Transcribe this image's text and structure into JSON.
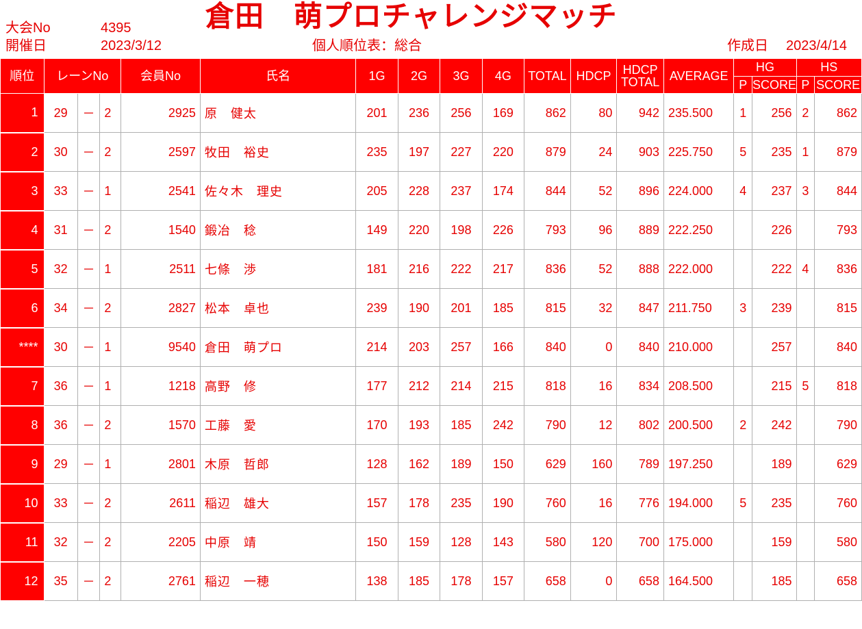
{
  "header": {
    "tournament_no_label": "大会No",
    "tournament_no": "4395",
    "date_label": "開催日",
    "date": "2023/3/12",
    "title": "倉田　萌プロチャレンジマッチ",
    "subtitle": "個人順位表：総合",
    "created_label": "作成日",
    "created_date": "2023/4/14"
  },
  "columns": {
    "rank": "順位",
    "lane": "レーンNo",
    "member": "会員No",
    "name": "氏名",
    "g1": "1G",
    "g2": "2G",
    "g3": "3G",
    "g4": "4G",
    "total": "TOTAL",
    "hdcp": "HDCP",
    "hdcp_total_1": "HDCP",
    "hdcp_total_2": "TOTAL",
    "average": "AVERAGE",
    "hg": "HG",
    "hs": "HS",
    "p": "P",
    "score": "SCORE"
  },
  "colors": {
    "accent": "#ff0000",
    "text": "#e60000"
  },
  "rows": [
    {
      "rank": "1",
      "lane_a": "29",
      "dash": "－",
      "lane_b": "2",
      "member": "2925",
      "name": "原　健太",
      "g1": "201",
      "g2": "236",
      "g3": "256",
      "g4": "169",
      "total": "862",
      "hdcp": "80",
      "hdcp_total": "942",
      "average": "235.500",
      "hg_p": "1",
      "hg_score": "256",
      "hs_p": "2",
      "hs_score": "862"
    },
    {
      "rank": "2",
      "lane_a": "30",
      "dash": "－",
      "lane_b": "2",
      "member": "2597",
      "name": "牧田　裕史",
      "g1": "235",
      "g2": "197",
      "g3": "227",
      "g4": "220",
      "total": "879",
      "hdcp": "24",
      "hdcp_total": "903",
      "average": "225.750",
      "hg_p": "5",
      "hg_score": "235",
      "hs_p": "1",
      "hs_score": "879"
    },
    {
      "rank": "3",
      "lane_a": "33",
      "dash": "－",
      "lane_b": "1",
      "member": "2541",
      "name": "佐々木　理史",
      "g1": "205",
      "g2": "228",
      "g3": "237",
      "g4": "174",
      "total": "844",
      "hdcp": "52",
      "hdcp_total": "896",
      "average": "224.000",
      "hg_p": "4",
      "hg_score": "237",
      "hs_p": "3",
      "hs_score": "844"
    },
    {
      "rank": "4",
      "lane_a": "31",
      "dash": "－",
      "lane_b": "2",
      "member": "1540",
      "name": "鍛冶　稔",
      "g1": "149",
      "g2": "220",
      "g3": "198",
      "g4": "226",
      "total": "793",
      "hdcp": "96",
      "hdcp_total": "889",
      "average": "222.250",
      "hg_p": "",
      "hg_score": "226",
      "hs_p": "",
      "hs_score": "793"
    },
    {
      "rank": "5",
      "lane_a": "32",
      "dash": "－",
      "lane_b": "1",
      "member": "2511",
      "name": "七條　渉",
      "g1": "181",
      "g2": "216",
      "g3": "222",
      "g4": "217",
      "total": "836",
      "hdcp": "52",
      "hdcp_total": "888",
      "average": "222.000",
      "hg_p": "",
      "hg_score": "222",
      "hs_p": "4",
      "hs_score": "836"
    },
    {
      "rank": "6",
      "lane_a": "34",
      "dash": "－",
      "lane_b": "2",
      "member": "2827",
      "name": "松本　卓也",
      "g1": "239",
      "g2": "190",
      "g3": "201",
      "g4": "185",
      "total": "815",
      "hdcp": "32",
      "hdcp_total": "847",
      "average": "211.750",
      "hg_p": "3",
      "hg_score": "239",
      "hs_p": "",
      "hs_score": "815"
    },
    {
      "rank": "****",
      "lane_a": "30",
      "dash": "－",
      "lane_b": "1",
      "member": "9540",
      "name": "倉田　萌プロ",
      "g1": "214",
      "g2": "203",
      "g3": "257",
      "g4": "166",
      "total": "840",
      "hdcp": "0",
      "hdcp_total": "840",
      "average": "210.000",
      "hg_p": "",
      "hg_score": "257",
      "hs_p": "",
      "hs_score": "840"
    },
    {
      "rank": "7",
      "lane_a": "36",
      "dash": "－",
      "lane_b": "1",
      "member": "1218",
      "name": "高野　修",
      "g1": "177",
      "g2": "212",
      "g3": "214",
      "g4": "215",
      "total": "818",
      "hdcp": "16",
      "hdcp_total": "834",
      "average": "208.500",
      "hg_p": "",
      "hg_score": "215",
      "hs_p": "5",
      "hs_score": "818"
    },
    {
      "rank": "8",
      "lane_a": "36",
      "dash": "－",
      "lane_b": "2",
      "member": "1570",
      "name": "工藤　愛",
      "g1": "170",
      "g2": "193",
      "g3": "185",
      "g4": "242",
      "total": "790",
      "hdcp": "12",
      "hdcp_total": "802",
      "average": "200.500",
      "hg_p": "2",
      "hg_score": "242",
      "hs_p": "",
      "hs_score": "790"
    },
    {
      "rank": "9",
      "lane_a": "29",
      "dash": "－",
      "lane_b": "1",
      "member": "2801",
      "name": "木原　哲郎",
      "g1": "128",
      "g2": "162",
      "g3": "189",
      "g4": "150",
      "total": "629",
      "hdcp": "160",
      "hdcp_total": "789",
      "average": "197.250",
      "hg_p": "",
      "hg_score": "189",
      "hs_p": "",
      "hs_score": "629"
    },
    {
      "rank": "10",
      "lane_a": "33",
      "dash": "－",
      "lane_b": "2",
      "member": "2611",
      "name": "稲辺　雄大",
      "g1": "157",
      "g2": "178",
      "g3": "235",
      "g4": "190",
      "total": "760",
      "hdcp": "16",
      "hdcp_total": "776",
      "average": "194.000",
      "hg_p": "5",
      "hg_score": "235",
      "hs_p": "",
      "hs_score": "760"
    },
    {
      "rank": "11",
      "lane_a": "32",
      "dash": "－",
      "lane_b": "2",
      "member": "2205",
      "name": "中原　靖",
      "g1": "150",
      "g2": "159",
      "g3": "128",
      "g4": "143",
      "total": "580",
      "hdcp": "120",
      "hdcp_total": "700",
      "average": "175.000",
      "hg_p": "",
      "hg_score": "159",
      "hs_p": "",
      "hs_score": "580"
    },
    {
      "rank": "12",
      "lane_a": "35",
      "dash": "－",
      "lane_b": "2",
      "member": "2761",
      "name": "稲辺　一穂",
      "g1": "138",
      "g2": "185",
      "g3": "178",
      "g4": "157",
      "total": "658",
      "hdcp": "0",
      "hdcp_total": "658",
      "average": "164.500",
      "hg_p": "",
      "hg_score": "185",
      "hs_p": "",
      "hs_score": "658"
    }
  ]
}
